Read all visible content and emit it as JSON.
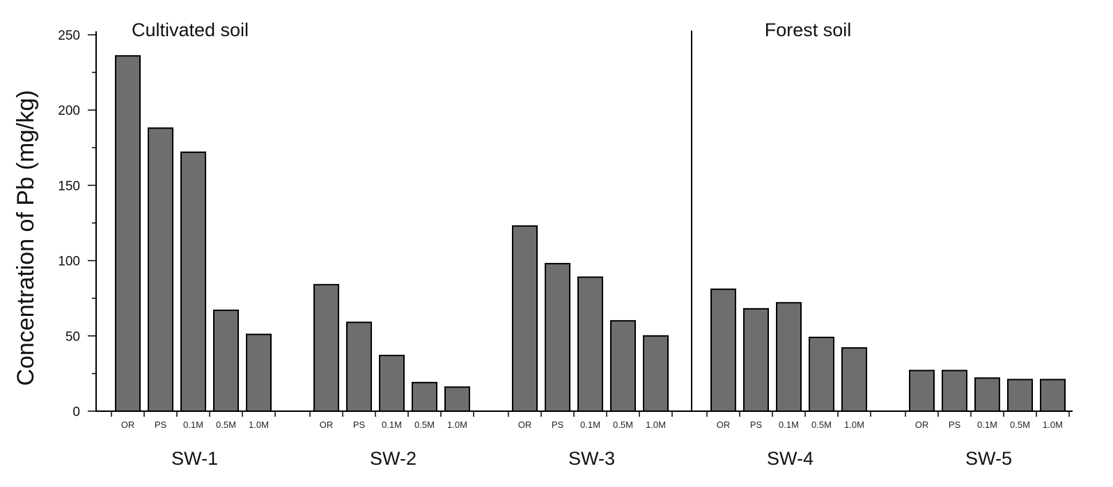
{
  "chart_data": {
    "type": "bar",
    "ylabel": "Concentration of Pb (mg/kg)",
    "xlabel": "",
    "ylim": [
      0,
      250
    ],
    "yticks": [
      0,
      50,
      100,
      150,
      200,
      250
    ],
    "categories": [
      "OR",
      "PS",
      "0.1M",
      "0.5M",
      "1.0M"
    ],
    "regions": [
      {
        "label": "Cultivated soil",
        "groups": [
          "SW-1",
          "SW-2",
          "SW-3"
        ]
      },
      {
        "label": "Forest soil",
        "groups": [
          "SW-4",
          "SW-5"
        ]
      }
    ],
    "groups": [
      {
        "name": "SW-1",
        "values": [
          236,
          188,
          172,
          67,
          51
        ]
      },
      {
        "name": "SW-2",
        "values": [
          84,
          59,
          37,
          19,
          16
        ]
      },
      {
        "name": "SW-3",
        "values": [
          123,
          98,
          89,
          60,
          50
        ]
      },
      {
        "name": "SW-4",
        "values": [
          81,
          68,
          72,
          49,
          42
        ]
      },
      {
        "name": "SW-5",
        "values": [
          27,
          27,
          22,
          21,
          21
        ]
      }
    ],
    "bar_color": "#6e6e6e",
    "grid": false,
    "legend": "none"
  }
}
